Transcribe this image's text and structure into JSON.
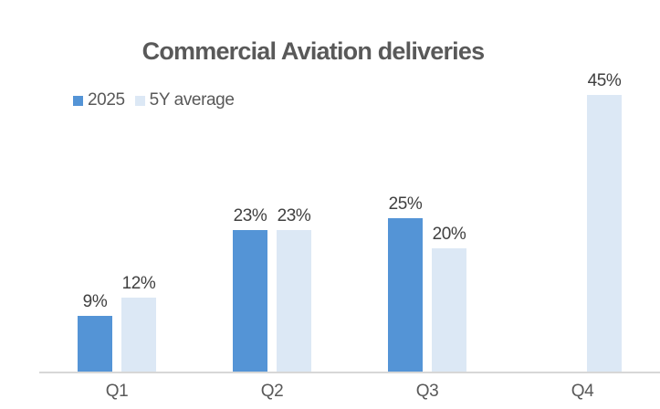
{
  "title": {
    "text": "Commercial Aviation deliveries",
    "color": "#595959"
  },
  "legend": {
    "position": "top-left",
    "items": [
      {
        "label": "2025",
        "color": "#5494D6"
      },
      {
        "label": "5Y average",
        "color": "#DCE8F5"
      }
    ]
  },
  "chart_data": {
    "type": "bar",
    "title": "Commercial Aviation deliveries",
    "categories": [
      "Q1",
      "Q2",
      "Q3",
      "Q4"
    ],
    "series": [
      {
        "name": "2025",
        "color": "#5494D6",
        "values": [
          9,
          23,
          25,
          null
        ],
        "labels": [
          "9%",
          "23%",
          "25%",
          null
        ]
      },
      {
        "name": "5Y average",
        "color": "#DCE8F5",
        "values": [
          12,
          23,
          20,
          45
        ],
        "labels": [
          "12%",
          "23%",
          "20%",
          "45%"
        ]
      }
    ],
    "unit": "%",
    "ylim": [
      0,
      50
    ],
    "gridlines": false,
    "y_axis_visible": false,
    "legend_position": "top-left",
    "xlabel": "",
    "ylabel": "",
    "axis_line_color": "#D7D7D7",
    "category_label_color": "#595959",
    "data_label_color": "#404040",
    "background_color": "#FFFFFF"
  }
}
